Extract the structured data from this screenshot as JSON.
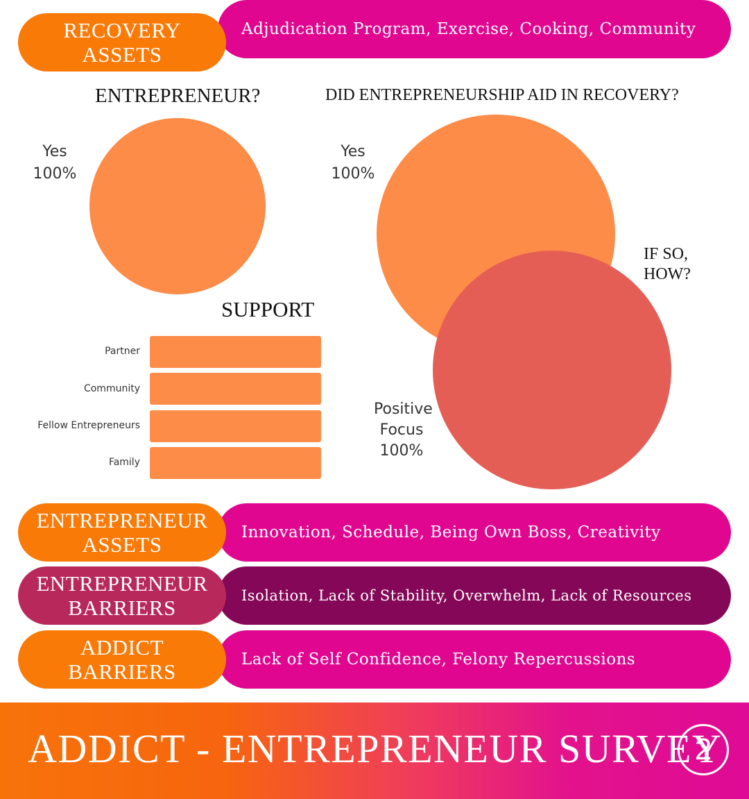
{
  "recovery_assets": {
    "label": "RECOVERY ASSETS",
    "value": "Adjudication Program, Exercise, Cooking, Community"
  },
  "entrepreneur_assets": {
    "label": "ENTREPRENEUR ASSETS",
    "value": "Innovation, Schedule, Being Own Boss, Creativity"
  },
  "entrepreneur_barriers": {
    "label": "ENTREPRENEUR BARRIERS",
    "value": "Isolation, Lack of Stability, Overwhelm, Lack of Resources"
  },
  "addict_barriers": {
    "label": "ADDICT BARRIERS",
    "value": "Lack of Self Confidence, Felony Repercussions"
  },
  "footer": {
    "title": "ADDICT - ENTREPRENEUR SURVEY",
    "page": "2"
  },
  "colors": {
    "orange_pill": "#f97a07",
    "magenta_pill": "#e0068f",
    "berry_pill": "#b8285a",
    "plum_pill": "#850758",
    "pie_orange": "#fc8c48",
    "pie_red": "#e45e56"
  },
  "chart_data": [
    {
      "type": "pie",
      "title": "ENTREPRENEUR?",
      "slices": [
        {
          "label": "Yes",
          "value": 100,
          "display": "100%"
        }
      ]
    },
    {
      "type": "pie",
      "title": "DID ENTREPRENEURSHIP AID IN RECOVERY?",
      "slices": [
        {
          "label": "Yes",
          "value": 100,
          "display": "100%"
        }
      ]
    },
    {
      "type": "pie",
      "title": "IF SO, HOW?",
      "slices": [
        {
          "label": "Positive Focus",
          "value": 100,
          "display": "100%"
        }
      ]
    },
    {
      "type": "bar",
      "orientation": "horizontal",
      "title": "SUPPORT",
      "categories": [
        "Partner",
        "Community",
        "Fellow Entrepreneurs",
        "Family"
      ],
      "values": [
        1,
        1,
        1,
        1
      ],
      "grid": false
    }
  ]
}
